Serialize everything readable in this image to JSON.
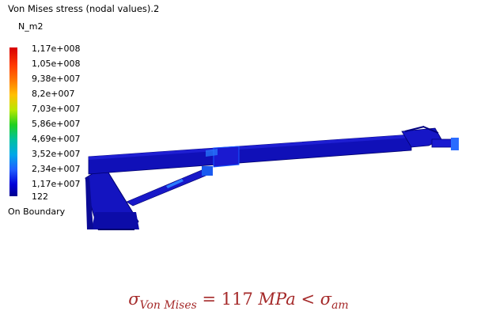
{
  "viewer": {
    "title": "Von Mises stress (nodal values).2",
    "unit": "N_m2",
    "legend_values": [
      "1,17e+008",
      "1,05e+008",
      "9,38e+007",
      "8,2e+007",
      "7,03e+007",
      "5,86e+007",
      "4,69e+007",
      "3,52e+007",
      "2,34e+007",
      "1,17e+007",
      "122"
    ],
    "boundary_label": "On Boundary",
    "colors": {
      "max": "#d70000",
      "min": "#000090",
      "model": "#1010b8"
    }
  },
  "formula": {
    "sigma": "σ",
    "subscript_left": "Von Mises",
    "equals": "= 117 ",
    "unit": "MPa",
    "lt": " < ",
    "sigma2": "σ",
    "subscript_right": "am"
  }
}
